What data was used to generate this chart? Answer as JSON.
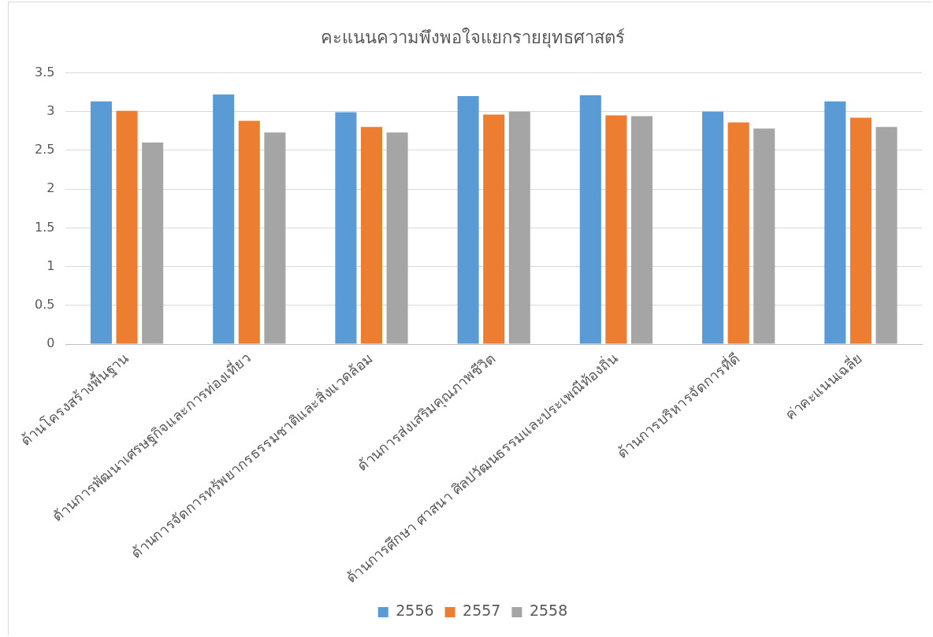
{
  "chart_data": {
    "type": "bar",
    "title": "คะแนนความพึงพอใจแยกรายยุทธศาสตร์",
    "categories": [
      "ด้านโครงสร้างพื้นฐาน",
      "ด้านการพัฒนาเศรษฐกิจและการท่องเที่ยว",
      "ด้านการจัดการทรัพยากรธรรมชาติและสิ่งแวดล้อม",
      "ด้านการส่งเสริมคุณภาพชีวิต",
      "ด้านการศึกษา ศาสนา ศิลปวัฒนธรรมและประเพณีท้องถิ่น",
      "ด้านการบริหารจัดการที่ดี",
      "ค่าคะแนนเฉลี่ย"
    ],
    "series": [
      {
        "name": "2556",
        "color": "#5b9bd5",
        "values": [
          3.13,
          3.22,
          2.99,
          3.2,
          3.21,
          3.0,
          3.13
        ]
      },
      {
        "name": "2557",
        "color": "#ed7d31",
        "values": [
          3.01,
          2.88,
          2.8,
          2.96,
          2.95,
          2.86,
          2.92
        ]
      },
      {
        "name": "2558",
        "color": "#a5a5a5",
        "values": [
          2.6,
          2.73,
          2.73,
          3.0,
          2.94,
          2.78,
          2.8
        ]
      }
    ],
    "ylim": [
      0,
      3.5
    ],
    "yticks": [
      0,
      0.5,
      1,
      1.5,
      2,
      2.5,
      3,
      3.5
    ],
    "grid": "y",
    "legend": "bottom"
  }
}
